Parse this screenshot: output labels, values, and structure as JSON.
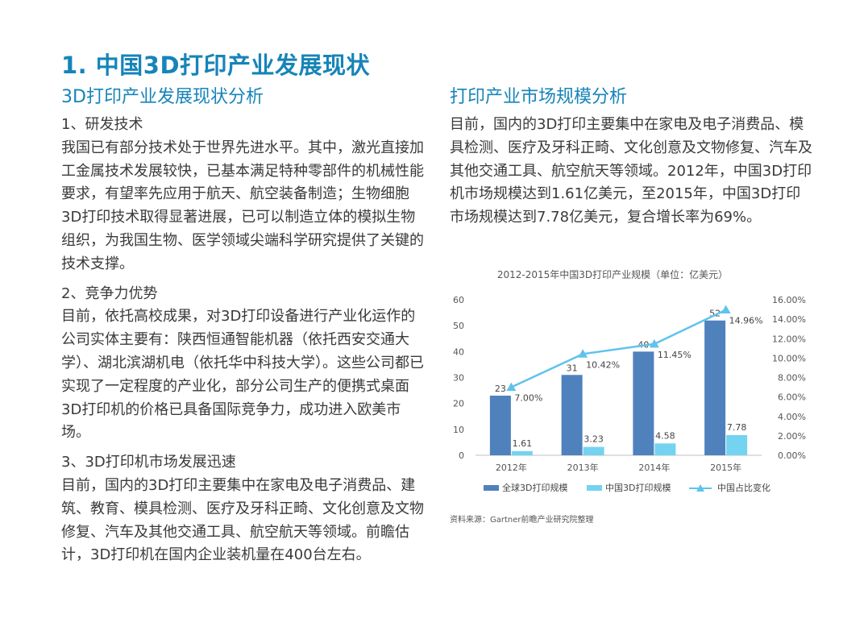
{
  "page": {
    "title": "1. 中国3D打印产业发展现状"
  },
  "left": {
    "title": "3D打印产业发展现状分析",
    "sections": [
      {
        "heading": "1、研发技术",
        "body": "我国已有部分技术处于世界先进水平。其中，激光直接加工金属技术发展较快，已基本满足特种零部件的机械性能要求，有望率先应用于航天、航空装备制造；生物细胞3D打印技术取得显著进展，已可以制造立体的模拟生物组织，为我国生物、医学领域尖端科学研究提供了关键的技术支撑。"
      },
      {
        "heading": "2、竞争力优势",
        "body": "目前，依托高校成果，对3D打印设备进行产业化运作的公司实体主要有：陕西恒通智能机器（依托西安交通大学）、湖北滨湖机电（依托华中科技大学）。这些公司都已实现了一定程度的产业化，部分公司生产的便携式桌面3D打印机的价格已具备国际竞争力，成功进入欧美市场。"
      },
      {
        "heading": "3、3D打印机市场发展迅速",
        "body": "目前，国内的3D打印主要集中在家电及电子消费品、建筑、教育、模具检测、医疗及牙科正畸、文化创意及文物修复、汽车及其他交通工具、航空航天等领域。前瞻估计，3D打印机在国内企业装机量在400台左右。"
      }
    ]
  },
  "right": {
    "title": "打印产业市场规模分析",
    "body": "目前，国内的3D打印主要集中在家电及电子消费品、模具检测、医疗及牙科正畸、文化创意及文物修复、汽车及其他交通工具、航空航天等领域。2012年，中国3D打印机市场规模达到1.61亿美元，至2015年，中国3D打印市场规模达到7.78亿美元，复合增长率为69%。",
    "source": "资料来源：Gartner前瞻产业研究院整理"
  },
  "colors": {
    "accent": "#1684b8",
    "bar_global": "#4f81bd",
    "bar_china": "#74d3f0",
    "line_share": "#5fc3ec",
    "text": "#3a3a3a"
  },
  "chart_data": {
    "type": "bar",
    "title": "2012-2015年中国3D打印产业规模（单位：亿美元）",
    "categories": [
      "2012年",
      "2013年",
      "2014年",
      "2015年"
    ],
    "series": [
      {
        "name": "全球3D打印规模",
        "kind": "bar",
        "axis": "left",
        "values": [
          23,
          31,
          40,
          52
        ],
        "labels": [
          "23",
          "31",
          "40",
          "52"
        ]
      },
      {
        "name": "中国3D打印规模",
        "kind": "bar",
        "axis": "left",
        "values": [
          1.61,
          3.23,
          4.58,
          7.78
        ],
        "labels": [
          "1.61",
          "3.23",
          "4.58",
          "7.78"
        ]
      },
      {
        "name": "中国占比变化",
        "kind": "line",
        "axis": "right",
        "values": [
          7.0,
          10.42,
          11.45,
          14.96
        ],
        "labels": [
          "7.00%",
          "10.42%",
          "11.45%",
          "14.96%"
        ]
      }
    ],
    "ylim": [
      0,
      60
    ],
    "yticks": [
      0,
      10,
      20,
      30,
      40,
      50,
      60
    ],
    "y2lim": [
      0,
      16
    ],
    "y2ticks": [
      "0.00%",
      "2.00%",
      "4.00%",
      "6.00%",
      "8.00%",
      "10.00%",
      "12.00%",
      "14.00%",
      "16.00%"
    ],
    "legend_position": "bottom",
    "grid": false
  }
}
